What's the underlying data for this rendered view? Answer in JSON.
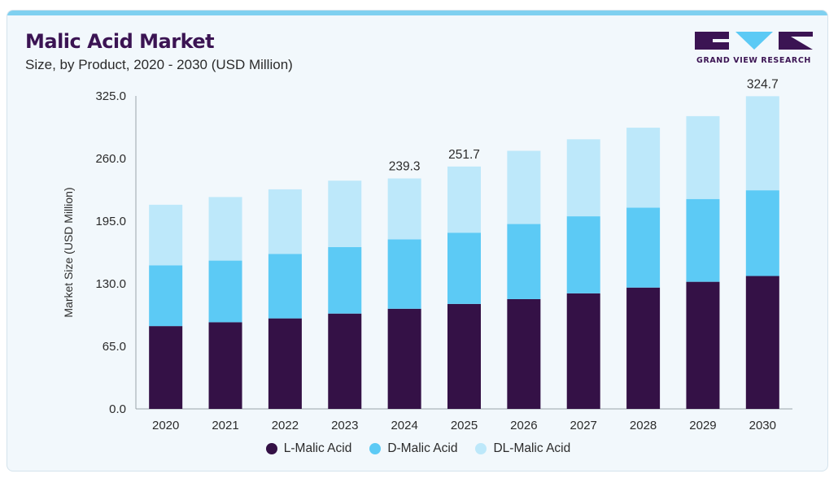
{
  "header": {
    "title": "Malic Acid Market",
    "subtitle": "Size, by Product, 2020 - 2030 (USD Million)"
  },
  "brand": {
    "name": "GRAND VIEW RESEARCH",
    "color": "#3b1453",
    "accent": "#7fd0f0"
  },
  "chart_data": {
    "type": "bar",
    "stacked": true,
    "categories": [
      "2020",
      "2021",
      "2022",
      "2023",
      "2024",
      "2025",
      "2026",
      "2027",
      "2028",
      "2029",
      "2030"
    ],
    "series": [
      {
        "name": "L-Malic Acid",
        "color": "#341146",
        "values": [
          86.0,
          90.0,
          94.0,
          99.0,
          104.0,
          109.0,
          114.0,
          120.0,
          126.0,
          132.0,
          138.0
        ]
      },
      {
        "name": "D-Malic Acid",
        "color": "#5ccaf5",
        "values": [
          63.0,
          64.0,
          67.0,
          69.0,
          72.0,
          74.0,
          78.0,
          80.0,
          83.0,
          86.0,
          89.0
        ]
      },
      {
        "name": "DL-Malic Acid",
        "color": "#bde8fa",
        "values": [
          63.0,
          66.0,
          67.0,
          69.0,
          63.3,
          68.7,
          76.0,
          80.0,
          83.0,
          86.0,
          97.7
        ]
      }
    ],
    "totals_labels": {
      "2024": "239.3",
      "2025": "251.7",
      "2030": "324.7"
    },
    "ylabel": "Market Size (USD Million)",
    "xlabel": "",
    "ylim": [
      0,
      325
    ],
    "yticks": [
      "0.0",
      "65.0",
      "130.0",
      "195.0",
      "260.0",
      "325.0"
    ],
    "grid": false,
    "legend_position": "bottom-center"
  }
}
